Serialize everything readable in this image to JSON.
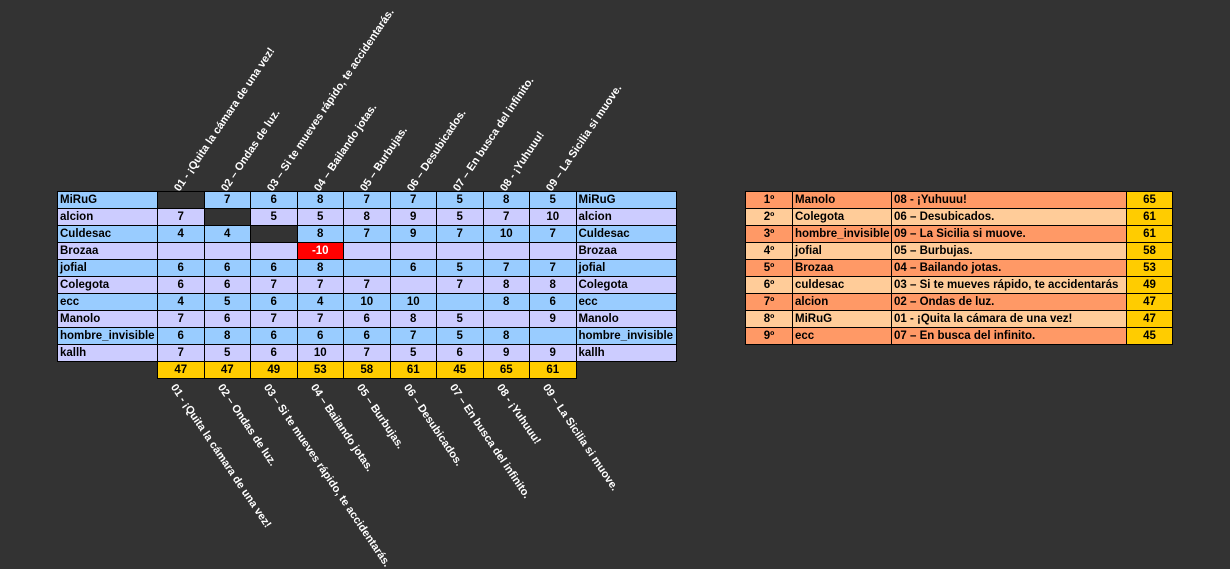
{
  "songs": [
    "01 - ¡Quita la cámara de una vez!",
    "02 – Ondas de luz.",
    "03 – Si te mueves rápido, te accidentarás.",
    "04 – Bailando jotas.",
    "05 – Burbujas.",
    "06 – Desubicados.",
    "07 – En busca del infinito.",
    "08 - ¡Yuhuuu!",
    "09 – La Sicilia si muove."
  ],
  "grid": {
    "rows": [
      {
        "name": "MiRuG",
        "scores": [
          "",
          "7",
          "6",
          "8",
          "7",
          "7",
          "5",
          "8",
          "5"
        ]
      },
      {
        "name": "alcion",
        "scores": [
          "7",
          "",
          "5",
          "5",
          "8",
          "9",
          "5",
          "7",
          "10"
        ]
      },
      {
        "name": "Culdesac",
        "scores": [
          "4",
          "4",
          "",
          "8",
          "7",
          "9",
          "7",
          "10",
          "7"
        ]
      },
      {
        "name": "Brozaa",
        "scores": [
          "",
          "",
          "",
          "-10",
          "",
          "",
          "",
          "",
          ""
        ]
      },
      {
        "name": "jofial",
        "scores": [
          "6",
          "6",
          "6",
          "8",
          "",
          "6",
          "5",
          "7",
          "7"
        ]
      },
      {
        "name": "Colegota",
        "scores": [
          "6",
          "6",
          "7",
          "7",
          "7",
          "",
          "7",
          "8",
          "8"
        ]
      },
      {
        "name": "ecc",
        "scores": [
          "4",
          "5",
          "6",
          "4",
          "10",
          "10",
          "",
          "8",
          "6"
        ]
      },
      {
        "name": "Manolo",
        "scores": [
          "7",
          "6",
          "7",
          "7",
          "6",
          "8",
          "5",
          "",
          "9"
        ]
      },
      {
        "name": "hombre_invisible",
        "scores": [
          "6",
          "8",
          "6",
          "6",
          "6",
          "7",
          "5",
          "8",
          ""
        ]
      },
      {
        "name": "kallh",
        "scores": [
          "7",
          "5",
          "6",
          "10",
          "7",
          "5",
          "6",
          "9",
          "9"
        ]
      }
    ],
    "totals": [
      "47",
      "47",
      "49",
      "53",
      "58",
      "61",
      "45",
      "65",
      "61"
    ]
  },
  "ranking": [
    {
      "pos": "1º",
      "name": "Manolo",
      "song": "08 - ¡Yuhuuu!",
      "score": "65"
    },
    {
      "pos": "2º",
      "name": "Colegota",
      "song": "06 – Desubicados.",
      "score": "61"
    },
    {
      "pos": "3º",
      "name": "hombre_invisible",
      "song": "09 – La Sicilia si muove.",
      "score": "61"
    },
    {
      "pos": "4º",
      "name": "jofial",
      "song": "05 – Burbujas.",
      "score": "58"
    },
    {
      "pos": "5º",
      "name": "Brozaa",
      "song": "04 – Bailando jotas.",
      "score": "53"
    },
    {
      "pos": "6º",
      "name": "culdesac",
      "song": "03 – Si te mueves rápido, te accidentarás",
      "score": "49"
    },
    {
      "pos": "7º",
      "name": "alcion",
      "song": "02 – Ondas de luz.",
      "score": "47"
    },
    {
      "pos": "8º",
      "name": "MiRuG",
      "song": "01 - ¡Quita la cámara de una vez!",
      "score": "47"
    },
    {
      "pos": "9º",
      "name": "ecc",
      "song": "07 – En busca del infinito.",
      "score": "45"
    }
  ],
  "colors": {
    "row_blue": "#99ccff",
    "row_lavender": "#ccccff",
    "total_yellow": "#ffcc00",
    "rank_dark": "#ff9966",
    "rank_light": "#ffcc99",
    "negative_red": "#ff0000",
    "background": "#333333"
  }
}
